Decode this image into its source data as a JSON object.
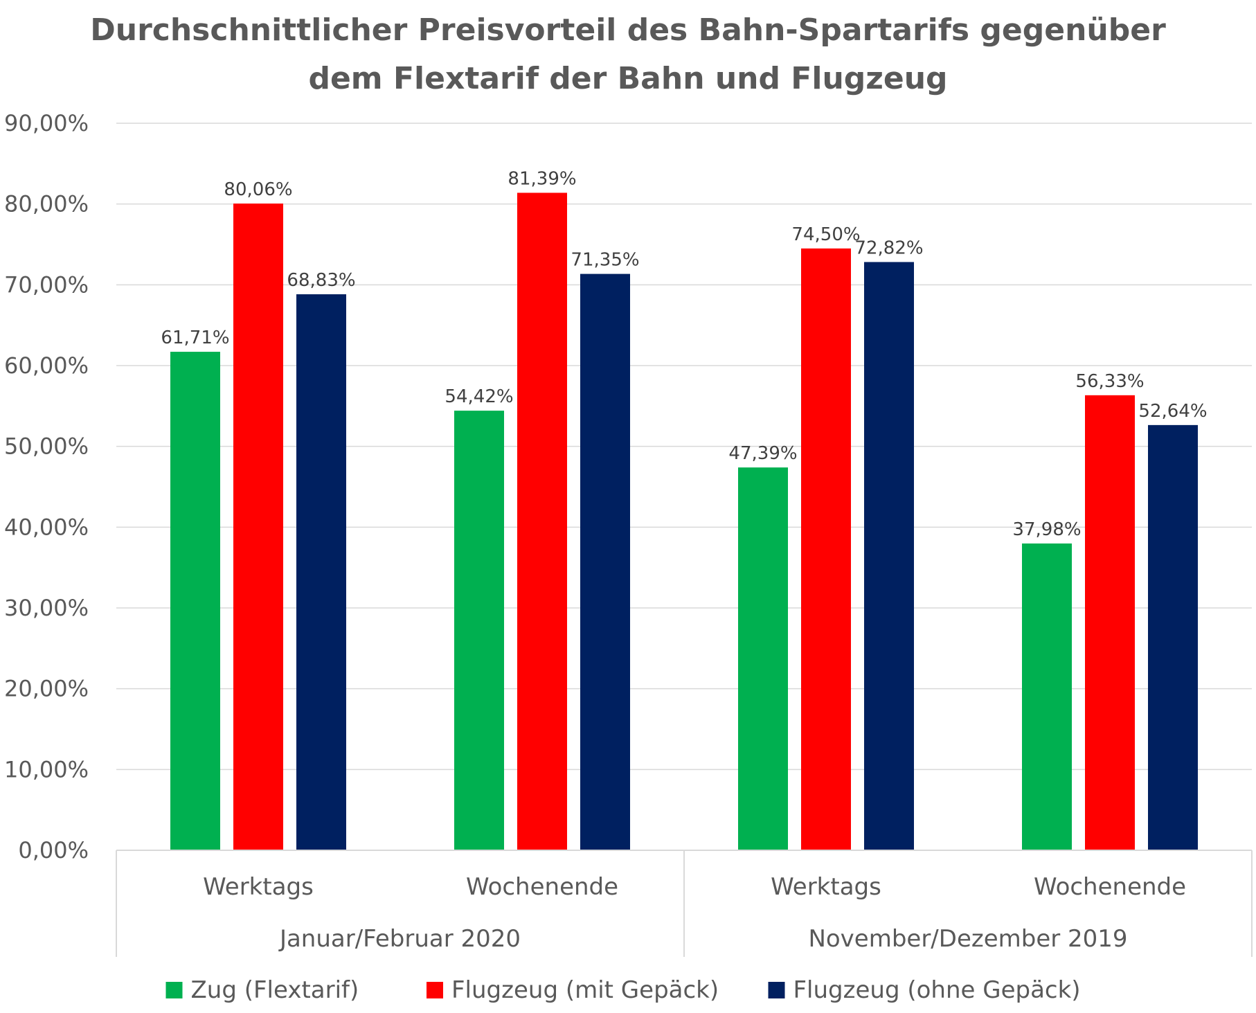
{
  "chart_data": {
    "type": "bar",
    "title_lines": [
      "Durchschnittlicher Preisvorteil des Bahn-Spartarifs gegenüber",
      "dem Flextarif der Bahn und Flugzeug"
    ],
    "categories": [
      "Werktags",
      "Wochenende",
      "Werktags",
      "Wochenende"
    ],
    "groups": [
      {
        "label": "Januar/Februar 2020",
        "categories": [
          0,
          1
        ]
      },
      {
        "label": "November/Dezember 2019",
        "categories": [
          2,
          3
        ]
      }
    ],
    "series": [
      {
        "name": "Zug (Flextarif)",
        "color": "#00B050",
        "values": [
          61.71,
          54.42,
          47.39,
          37.98
        ],
        "labels": [
          "61,71%",
          "54,42%",
          "47,39%",
          "37,98%"
        ]
      },
      {
        "name": "Flugzeug (mit Gepäck)",
        "color": "#FF0000",
        "values": [
          80.06,
          81.39,
          74.5,
          56.33
        ],
        "labels": [
          "80,06%",
          "81,39%",
          "74,50%",
          "56,33%"
        ]
      },
      {
        "name": "Flugzeug (ohne Gepäck)",
        "color": "#002060",
        "values": [
          68.83,
          71.35,
          72.82,
          52.64
        ],
        "labels": [
          "68,83%",
          "71,35%",
          "72,82%",
          "52,64%"
        ]
      }
    ],
    "ylim": [
      0,
      90
    ],
    "yticks": [
      0,
      10,
      20,
      30,
      40,
      50,
      60,
      70,
      80,
      90
    ],
    "ytick_labels": [
      "0,00%",
      "10,00%",
      "20,00%",
      "30,00%",
      "40,00%",
      "50,00%",
      "60,00%",
      "70,00%",
      "80,00%",
      "90,00%"
    ],
    "grid": true,
    "legend_position": "bottom"
  }
}
